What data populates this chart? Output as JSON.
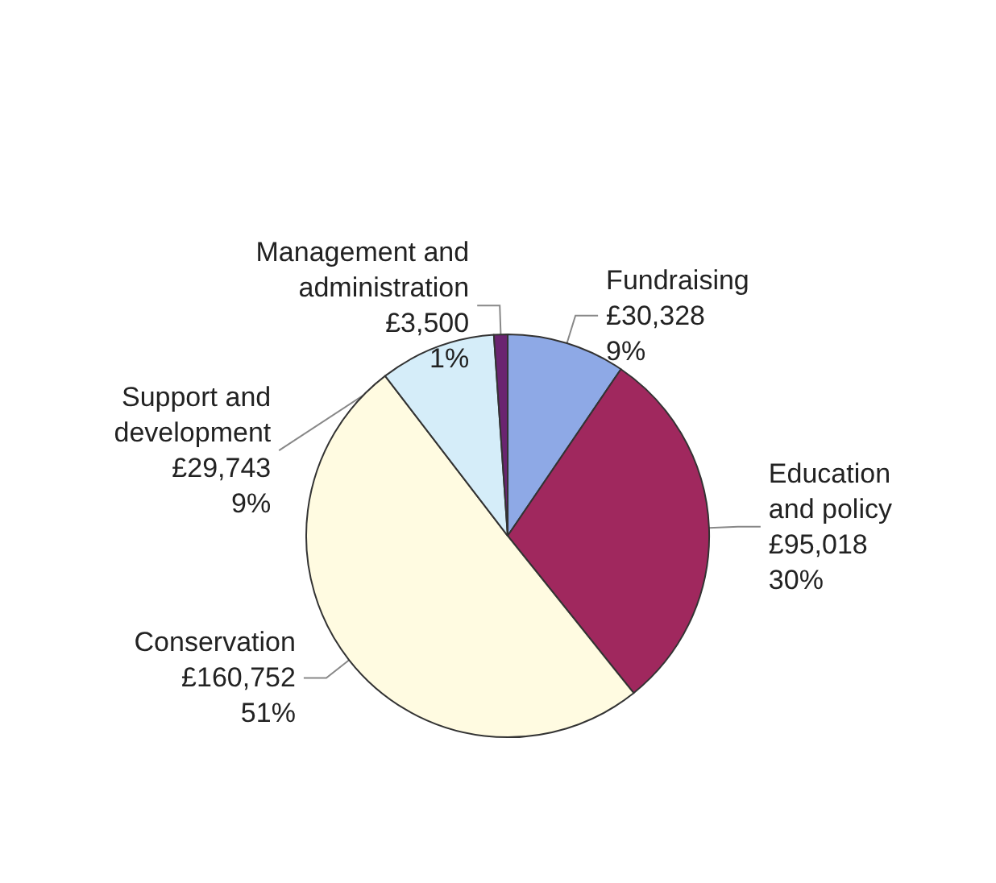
{
  "chart_data": {
    "type": "pie",
    "categories": [
      "Fundraising",
      "Education and policy",
      "Conservation",
      "Support and development",
      "Management and administration"
    ],
    "values": [
      30328,
      95018,
      160752,
      29743,
      3500
    ],
    "value_labels": [
      "£30,328\n9%",
      "£95,018\n30%",
      "£160,752\n51%",
      "£29,743\n9%",
      "£3,500\n1%"
    ],
    "colors": [
      "#8ea9e6",
      "#a0285e",
      "#fffbe1",
      "#d5edf9",
      "#6a2470"
    ],
    "legend": false
  }
}
